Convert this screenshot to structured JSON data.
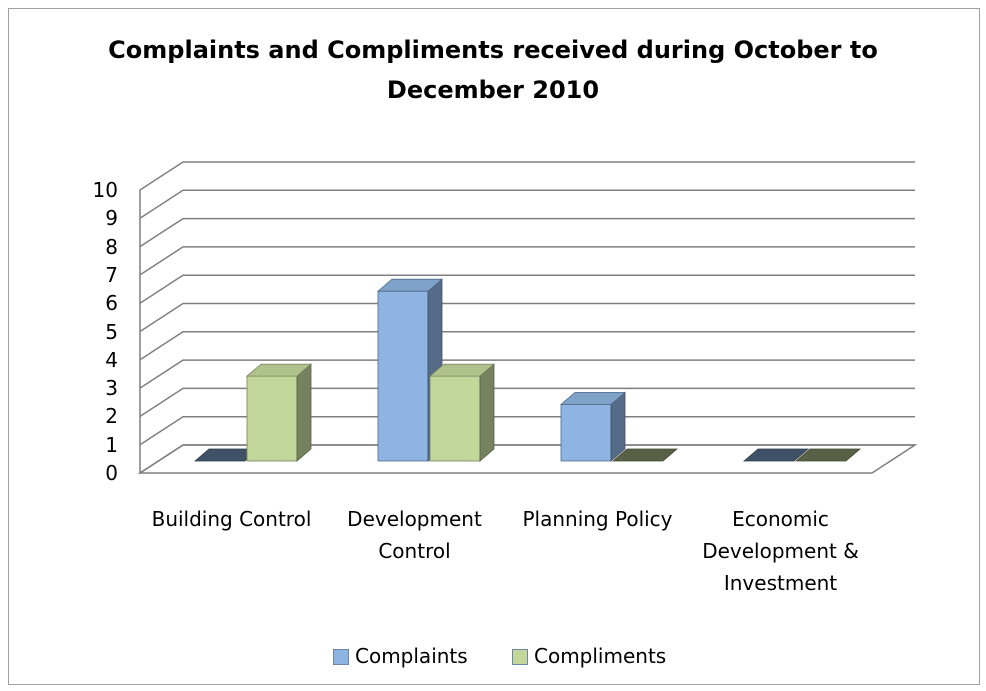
{
  "chart_data": {
    "type": "bar3d",
    "title": "Complaints and Compliments received during October to December 2010",
    "categories": [
      "Building Control",
      "Development Control",
      "Planning Policy",
      "Economic Development & Investment"
    ],
    "series": [
      {
        "name": "Complaints",
        "color": "#8db4e2",
        "values": [
          0,
          6,
          2,
          0
        ]
      },
      {
        "name": "Compliments",
        "color": "#c4d79b",
        "values": [
          3,
          3,
          0,
          0
        ]
      }
    ],
    "ylim": [
      0,
      10
    ],
    "yticks": [
      0,
      1,
      2,
      3,
      4,
      5,
      6,
      7,
      8,
      9,
      10
    ],
    "grid": true,
    "legend": "bottom"
  }
}
